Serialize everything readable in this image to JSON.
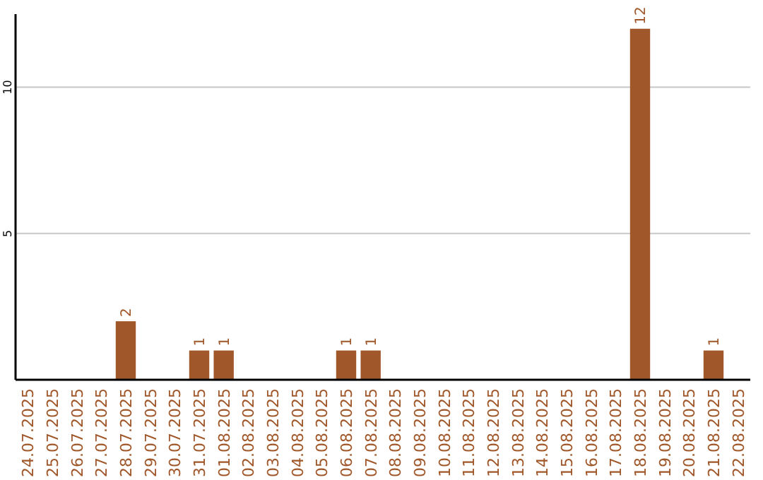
{
  "chart_data": {
    "type": "bar",
    "categories": [
      "24.07.2025",
      "25.07.2025",
      "26.07.2025",
      "27.07.2025",
      "28.07.2025",
      "29.07.2025",
      "30.07.2025",
      "31.07.2025",
      "01.08.2025",
      "02.08.2025",
      "03.08.2025",
      "04.08.2025",
      "05.08.2025",
      "06.08.2025",
      "07.08.2025",
      "08.08.2025",
      "09.08.2025",
      "10.08.2025",
      "11.08.2025",
      "12.08.2025",
      "13.08.2025",
      "14.08.2025",
      "15.08.2025",
      "16.08.2025",
      "17.08.2025",
      "18.08.2025",
      "19.08.2025",
      "20.08.2025",
      "21.08.2025",
      "22.08.2025"
    ],
    "values": [
      0,
      0,
      0,
      0,
      2,
      0,
      0,
      1,
      1,
      0,
      0,
      0,
      0,
      1,
      1,
      0,
      0,
      0,
      0,
      0,
      0,
      0,
      0,
      0,
      0,
      12,
      0,
      0,
      1,
      0
    ],
    "value_labels": [
      null,
      null,
      null,
      null,
      "2",
      null,
      null,
      "1",
      "1",
      null,
      null,
      null,
      null,
      "1",
      "1",
      null,
      null,
      null,
      null,
      null,
      null,
      null,
      null,
      null,
      null,
      "12",
      null,
      null,
      "1",
      null
    ],
    "color": "#a0572a",
    "ylim": [
      0,
      12.5
    ],
    "yticks": [
      5,
      10
    ],
    "grid": "y"
  }
}
